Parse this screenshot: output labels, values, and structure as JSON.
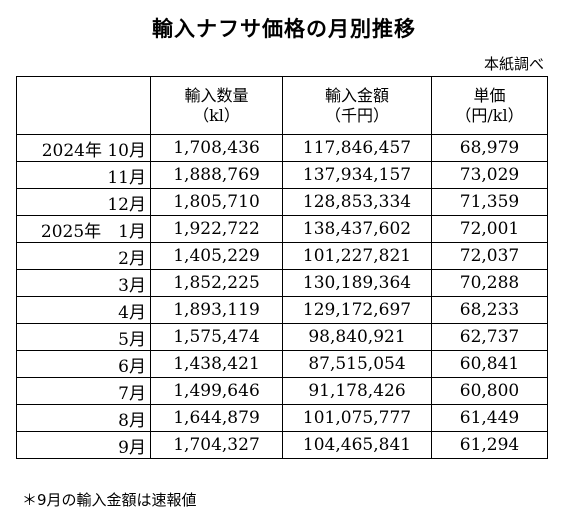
{
  "title": "輸入ナフサ価格の月別推移",
  "source": "本紙調べ",
  "table": {
    "headers": [
      {
        "main": "",
        "unit": ""
      },
      {
        "main": "輸入数量",
        "unit": "（kl）"
      },
      {
        "main": "輸入金額",
        "unit": "（千円）"
      },
      {
        "main": "単価",
        "unit": "（円/kl）"
      }
    ],
    "rows": [
      {
        "period": "2024年 10月",
        "quantity": "1,708,436",
        "amount": "117,846,457",
        "unit_price": "68,979"
      },
      {
        "period": "11月",
        "quantity": "1,888,769",
        "amount": "137,934,157",
        "unit_price": "73,029"
      },
      {
        "period": "12月",
        "quantity": "1,805,710",
        "amount": "128,853,334",
        "unit_price": "71,359"
      },
      {
        "period": "2025年　1月",
        "quantity": "1,922,722",
        "amount": "138,437,602",
        "unit_price": "72,001"
      },
      {
        "period": "2月",
        "quantity": "1,405,229",
        "amount": "101,227,821",
        "unit_price": "72,037"
      },
      {
        "period": "3月",
        "quantity": "1,852,225",
        "amount": "130,189,364",
        "unit_price": "70,288"
      },
      {
        "period": "4月",
        "quantity": "1,893,119",
        "amount": "129,172,697",
        "unit_price": "68,233"
      },
      {
        "period": "5月",
        "quantity": "1,575,474",
        "amount": "98,840,921",
        "unit_price": "62,737"
      },
      {
        "period": "6月",
        "quantity": "1,438,421",
        "amount": "87,515,054",
        "unit_price": "60,841"
      },
      {
        "period": "7月",
        "quantity": "1,499,646",
        "amount": "91,178,426",
        "unit_price": "60,800"
      },
      {
        "period": "8月",
        "quantity": "1,644,879",
        "amount": "101,075,777",
        "unit_price": "61,449"
      },
      {
        "period": "9月",
        "quantity": "1,704,327",
        "amount": "104,465,841",
        "unit_price": "61,294"
      }
    ]
  },
  "note": "＊9月の輸入金額は速報値"
}
